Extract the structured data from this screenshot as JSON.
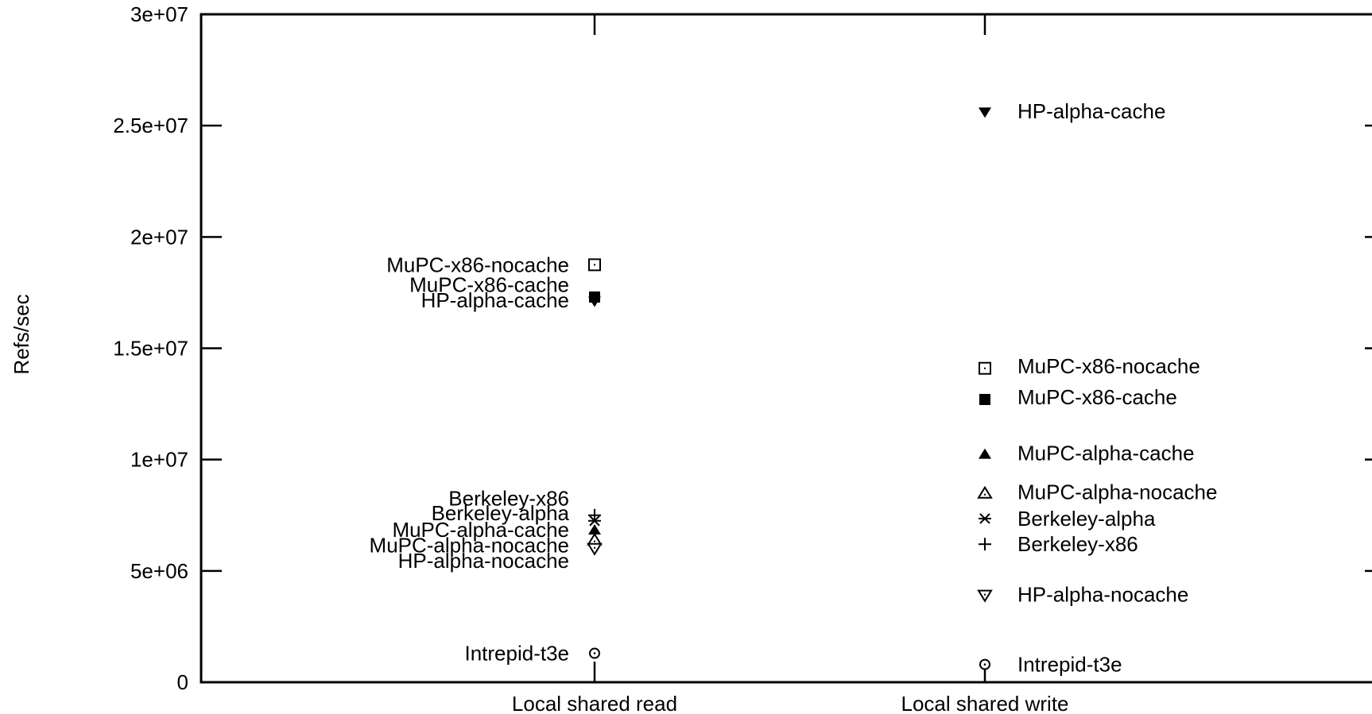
{
  "chart_data": {
    "type": "scatter",
    "ylabel": "Refs/sec",
    "xlabel": "",
    "title": "",
    "categories": [
      "Local shared read",
      "Local shared write"
    ],
    "ylim": [
      0,
      30000000
    ],
    "yticks": [
      {
        "value": 0,
        "label": "0"
      },
      {
        "value": 5000000,
        "label": "5e+06"
      },
      {
        "value": 10000000,
        "label": "1e+07"
      },
      {
        "value": 15000000,
        "label": "1.5e+07"
      },
      {
        "value": 20000000,
        "label": "2e+07"
      },
      {
        "value": 25000000,
        "label": "2.5e+07"
      },
      {
        "value": 30000000,
        "label": "3e+07"
      }
    ],
    "grid": false,
    "series": [
      {
        "name": "MuPC-x86-nocache",
        "marker": "square-open",
        "values": [
          18750000,
          14100000
        ]
      },
      {
        "name": "MuPC-x86-cache",
        "marker": "square-filled",
        "values": [
          17300000,
          12700000
        ]
      },
      {
        "name": "HP-alpha-cache",
        "marker": "triangle-down-filled",
        "values": [
          17100000,
          25600000
        ]
      },
      {
        "name": "Berkeley-x86",
        "marker": "plus",
        "values": [
          7500000,
          6200000
        ]
      },
      {
        "name": "Berkeley-alpha",
        "marker": "asterisk",
        "values": [
          7250000,
          7350000
        ]
      },
      {
        "name": "MuPC-alpha-cache",
        "marker": "triangle-up-filled",
        "values": [
          6850000,
          10250000
        ]
      },
      {
        "name": "MuPC-alpha-nocache",
        "marker": "triangle-up-open",
        "values": [
          6400000,
          8500000
        ]
      },
      {
        "name": "HP-alpha-nocache",
        "marker": "triangle-down-open",
        "values": [
          6000000,
          3900000
        ]
      },
      {
        "name": "Intrepid-t3e",
        "marker": "circle-open",
        "values": [
          1300000,
          800000
        ]
      }
    ],
    "point_labels": [
      {
        "category": 0,
        "name": "MuPC-x86-nocache",
        "label_value": 18750000
      },
      {
        "category": 0,
        "name": "MuPC-x86-cache",
        "label_value": 17850000
      },
      {
        "category": 0,
        "name": "HP-alpha-cache",
        "label_value": 17150000
      },
      {
        "category": 0,
        "name": "Berkeley-x86",
        "label_value": 8250000
      },
      {
        "category": 0,
        "name": "Berkeley-alpha",
        "label_value": 7600000
      },
      {
        "category": 0,
        "name": "MuPC-alpha-cache",
        "label_value": 6850000
      },
      {
        "category": 0,
        "name": "MuPC-alpha-nocache",
        "label_value": 6150000
      },
      {
        "category": 0,
        "name": "HP-alpha-nocache",
        "label_value": 5450000
      },
      {
        "category": 0,
        "name": "Intrepid-t3e",
        "label_value": 1300000
      },
      {
        "category": 1,
        "name": "HP-alpha-cache",
        "label_value": 25650000
      },
      {
        "category": 1,
        "name": "MuPC-x86-nocache",
        "label_value": 14200000
      },
      {
        "category": 1,
        "name": "MuPC-x86-cache",
        "label_value": 12800000
      },
      {
        "category": 1,
        "name": "MuPC-alpha-cache",
        "label_value": 10300000
      },
      {
        "category": 1,
        "name": "MuPC-alpha-nocache",
        "label_value": 8550000
      },
      {
        "category": 1,
        "name": "Berkeley-alpha",
        "label_value": 7350000
      },
      {
        "category": 1,
        "name": "Berkeley-x86",
        "label_value": 6200000
      },
      {
        "category": 1,
        "name": "HP-alpha-nocache",
        "label_value": 3950000
      },
      {
        "category": 1,
        "name": "Intrepid-t3e",
        "label_value": 800000
      }
    ],
    "colors": {
      "ink": "#000000",
      "background": "#ffffff"
    }
  }
}
